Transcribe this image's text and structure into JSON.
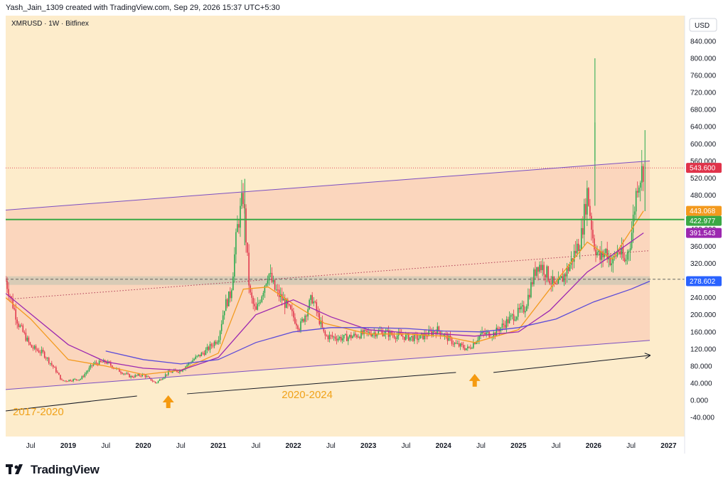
{
  "header": {
    "attribution": "Yash_Jain_1309 created with TradingView.com, Sep 29, 2026 15:37 UTC+5:30"
  },
  "symbol_info": "XMRUSD · 1W · Bitfinex",
  "currency": "USD",
  "brand": "TradingView",
  "colors": {
    "background": "#fdeccb",
    "channel_fill": "#fad2bb",
    "up_candle": "#22a84a",
    "down_candle": "#e0334a",
    "neutral_candle": "#7a7a7a",
    "ma_fast": "#f39a1e",
    "ma_mid": "#9c27b0",
    "ma_slow": "#5b4bd8",
    "channel_line": "#7b4fc2",
    "resistance": "#3aa845",
    "support_zone": "#c9c6b4",
    "arrow": "#f59a10",
    "trend_arrow": "#131722"
  },
  "chart_data": {
    "type": "candlestick",
    "title": "XMRUSD · 1W · Bitfinex",
    "ylabel": "USD",
    "ylim": [
      -50,
      850
    ],
    "xlim": [
      "2018-03",
      "2027-03"
    ],
    "y_ticks": [
      "840.000",
      "800.000",
      "760.000",
      "720.000",
      "680.000",
      "640.000",
      "600.000",
      "560.000",
      "520.000",
      "480.000",
      "440.000",
      "400.000",
      "360.000",
      "320.000",
      "280.000",
      "240.000",
      "200.000",
      "160.000",
      "120.000",
      "80.000",
      "40.000",
      "0.000",
      "-40.000"
    ],
    "x_ticks": [
      {
        "label": "Jul",
        "date": "2018-07"
      },
      {
        "label": "2019",
        "date": "2019-01"
      },
      {
        "label": "Jul",
        "date": "2019-07"
      },
      {
        "label": "2020",
        "date": "2020-01"
      },
      {
        "label": "Jul",
        "date": "2020-07"
      },
      {
        "label": "2021",
        "date": "2021-01"
      },
      {
        "label": "Jul",
        "date": "2021-07"
      },
      {
        "label": "2022",
        "date": "2022-01"
      },
      {
        "label": "Jul",
        "date": "2022-07"
      },
      {
        "label": "2023",
        "date": "2023-01"
      },
      {
        "label": "Jul",
        "date": "2023-07"
      },
      {
        "label": "2024",
        "date": "2024-01"
      },
      {
        "label": "Jul",
        "date": "2024-07"
      },
      {
        "label": "2025",
        "date": "2025-01"
      },
      {
        "label": "Jul",
        "date": "2025-07"
      },
      {
        "label": "2026",
        "date": "2026-01"
      },
      {
        "label": "Jul",
        "date": "2026-07"
      },
      {
        "label": "2027",
        "date": "2027-01"
      }
    ],
    "close_path": [
      [
        "2018-03",
        280
      ],
      [
        "2018-05",
        180
      ],
      [
        "2018-07",
        125
      ],
      [
        "2018-09",
        110
      ],
      [
        "2018-11",
        70
      ],
      [
        "2018-12",
        45
      ],
      [
        "2019-03",
        50
      ],
      [
        "2019-05",
        85
      ],
      [
        "2019-07",
        90
      ],
      [
        "2019-09",
        70
      ],
      [
        "2019-11",
        55
      ],
      [
        "2020-01",
        60
      ],
      [
        "2020-03",
        40
      ],
      [
        "2020-05",
        65
      ],
      [
        "2020-07",
        70
      ],
      [
        "2020-09",
        95
      ],
      [
        "2020-11",
        115
      ],
      [
        "2021-01",
        145
      ],
      [
        "2021-02",
        220
      ],
      [
        "2021-03",
        250
      ],
      [
        "2021-04",
        400
      ],
      [
        "2021-05",
        480
      ],
      [
        "2021-06",
        250
      ],
      [
        "2021-07",
        205
      ],
      [
        "2021-09",
        300
      ],
      [
        "2021-10",
        260
      ],
      [
        "2021-12",
        220
      ],
      [
        "2022-02",
        170
      ],
      [
        "2022-04",
        240
      ],
      [
        "2022-06",
        150
      ],
      [
        "2022-09",
        145
      ],
      [
        "2022-12",
        155
      ],
      [
        "2023-03",
        160
      ],
      [
        "2023-06",
        150
      ],
      [
        "2023-09",
        145
      ],
      [
        "2023-12",
        165
      ],
      [
        "2024-03",
        130
      ],
      [
        "2024-05",
        120
      ],
      [
        "2024-07",
        155
      ],
      [
        "2024-09",
        155
      ],
      [
        "2024-12",
        195
      ],
      [
        "2025-02",
        215
      ],
      [
        "2025-04",
        320
      ],
      [
        "2025-05",
        310
      ],
      [
        "2025-07",
        260
      ],
      [
        "2025-09",
        310
      ],
      [
        "2025-11",
        380
      ],
      [
        "2025-12",
        490
      ],
      [
        "2026-01",
        370
      ],
      [
        "2026-02",
        330
      ],
      [
        "2026-03",
        350
      ],
      [
        "2026-04",
        320
      ],
      [
        "2026-05",
        355
      ],
      [
        "2026-06",
        320
      ],
      [
        "2026-07",
        380
      ],
      [
        "2026-08",
        510
      ],
      [
        "2026-09",
        543.6
      ]
    ],
    "wick_extremes": [
      {
        "date": "2021-05",
        "high": 518
      },
      {
        "date": "2026-01",
        "high": 800
      },
      {
        "date": "2026-01",
        "high": 650
      },
      {
        "date": "2026-09",
        "high": 632
      }
    ],
    "moving_averages": [
      {
        "name": "ma_fast",
        "values": [
          [
            "2018-03",
            240
          ],
          [
            "2018-07",
            190
          ],
          [
            "2019-01",
            95
          ],
          [
            "2019-07",
            80
          ],
          [
            "2020-01",
            60
          ],
          [
            "2020-07",
            70
          ],
          [
            "2021-01",
            110
          ],
          [
            "2021-05",
            260
          ],
          [
            "2021-09",
            265
          ],
          [
            "2022-01",
            225
          ],
          [
            "2022-06",
            180
          ],
          [
            "2023-01",
            155
          ],
          [
            "2023-07",
            155
          ],
          [
            "2024-01",
            150
          ],
          [
            "2024-06",
            135
          ],
          [
            "2025-01",
            165
          ],
          [
            "2025-06",
            260
          ],
          [
            "2025-12",
            370
          ],
          [
            "2026-04",
            330
          ],
          [
            "2026-09",
            443.068
          ]
        ]
      },
      {
        "name": "ma_mid",
        "values": [
          [
            "2018-03",
            250
          ],
          [
            "2019-01",
            130
          ],
          [
            "2019-07",
            90
          ],
          [
            "2020-01",
            75
          ],
          [
            "2020-07",
            70
          ],
          [
            "2021-01",
            100
          ],
          [
            "2021-07",
            200
          ],
          [
            "2022-01",
            235
          ],
          [
            "2022-07",
            195
          ],
          [
            "2023-01",
            165
          ],
          [
            "2023-07",
            158
          ],
          [
            "2024-01",
            155
          ],
          [
            "2024-06",
            150
          ],
          [
            "2025-01",
            160
          ],
          [
            "2025-06",
            210
          ],
          [
            "2025-12",
            300
          ],
          [
            "2026-04",
            340
          ],
          [
            "2026-09",
            391.543
          ]
        ]
      },
      {
        "name": "ma_slow",
        "values": [
          [
            "2019-07",
            115
          ],
          [
            "2020-01",
            95
          ],
          [
            "2020-07",
            85
          ],
          [
            "2021-01",
            95
          ],
          [
            "2021-07",
            135
          ],
          [
            "2022-01",
            160
          ],
          [
            "2022-07",
            170
          ],
          [
            "2023-01",
            170
          ],
          [
            "2023-07",
            168
          ],
          [
            "2024-01",
            162
          ],
          [
            "2024-07",
            160
          ],
          [
            "2025-01",
            170
          ],
          [
            "2025-07",
            190
          ],
          [
            "2026-01",
            230
          ],
          [
            "2026-07",
            260
          ],
          [
            "2026-10",
            278.602
          ]
        ]
      }
    ],
    "price_labels": [
      {
        "name": "last_price",
        "value": 543.6,
        "label": "543.600",
        "color": "#e0334a"
      },
      {
        "name": "ma_fast",
        "value": 443.068,
        "label": "443.068",
        "color": "#f39a1e"
      },
      {
        "name": "resistance",
        "value": 422.977,
        "label": "422.977",
        "color": "#3aa845"
      },
      {
        "name": "ma_mid",
        "value": 391.543,
        "label": "391.543",
        "color": "#9c27b0"
      },
      {
        "name": "ma_slow",
        "value": 278.602,
        "label": "278.602",
        "color": "#2962ff"
      }
    ],
    "resistance_level": 422.977,
    "support_zone": [
      270,
      290
    ],
    "channel": {
      "upper": [
        [
          "2018-03",
          445
        ],
        [
          "2026-10",
          560
        ]
      ],
      "lower": [
        [
          "2018-03",
          25
        ],
        [
          "2026-10",
          140
        ]
      ]
    },
    "dotted_trend": [
      [
        "2018-04",
        237
      ],
      [
        "2026-10",
        350
      ]
    ],
    "dashed_level": 283,
    "annotations": [
      {
        "label": "2017-2020",
        "date": "2018-03",
        "y": -35
      },
      {
        "label": "2020-2024",
        "date": "2021-10",
        "y": 5
      }
    ],
    "up_arrows": [
      {
        "date": "2020-05",
        "y": -5
      },
      {
        "date": "2024-06",
        "y": 45
      }
    ],
    "trend_arrows": [
      {
        "from": [
          "2018-03",
          -25
        ],
        "to": [
          "2019-12",
          10
        ]
      },
      {
        "from": [
          "2020-08",
          15
        ],
        "to": [
          "2024-03",
          65
        ]
      },
      {
        "from": [
          "2024-09",
          65
        ],
        "to": [
          "2026-10",
          105
        ]
      }
    ]
  }
}
